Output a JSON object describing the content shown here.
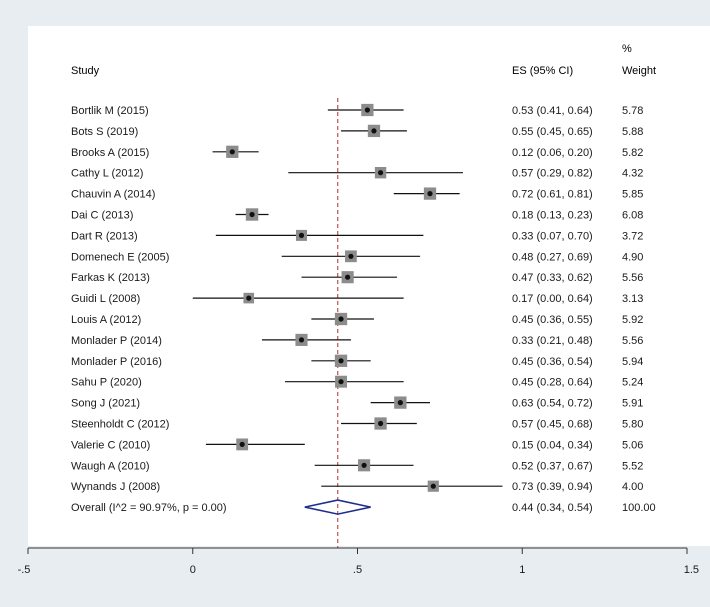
{
  "chart_data": {
    "type": "forest",
    "headers": {
      "study": "Study",
      "es": "ES (95% CI)",
      "weight_line1": "%",
      "weight_line2": "Weight"
    },
    "studies": [
      {
        "label": "Bortlik M (2015)",
        "es": 0.53,
        "lo": 0.41,
        "hi": 0.64,
        "ci_text": "0.53 (0.41, 0.64)",
        "weight": 5.78,
        "weight_text": "5.78"
      },
      {
        "label": "Bots S (2019)",
        "es": 0.55,
        "lo": 0.45,
        "hi": 0.65,
        "ci_text": "0.55 (0.45, 0.65)",
        "weight": 5.88,
        "weight_text": "5.88"
      },
      {
        "label": "Brooks A (2015)",
        "es": 0.12,
        "lo": 0.06,
        "hi": 0.2,
        "ci_text": "0.12 (0.06, 0.20)",
        "weight": 5.82,
        "weight_text": "5.82"
      },
      {
        "label": "Cathy L (2012)",
        "es": 0.57,
        "lo": 0.29,
        "hi": 0.82,
        "ci_text": "0.57 (0.29, 0.82)",
        "weight": 4.32,
        "weight_text": "4.32"
      },
      {
        "label": "Chauvin A (2014)",
        "es": 0.72,
        "lo": 0.61,
        "hi": 0.81,
        "ci_text": "0.72 (0.61, 0.81)",
        "weight": 5.85,
        "weight_text": "5.85"
      },
      {
        "label": "Dai C (2013)",
        "es": 0.18,
        "lo": 0.13,
        "hi": 0.23,
        "ci_text": "0.18 (0.13, 0.23)",
        "weight": 6.08,
        "weight_text": "6.08"
      },
      {
        "label": "Dart R (2013)",
        "es": 0.33,
        "lo": 0.07,
        "hi": 0.7,
        "ci_text": "0.33 (0.07, 0.70)",
        "weight": 3.72,
        "weight_text": "3.72"
      },
      {
        "label": "Domenech E (2005)",
        "es": 0.48,
        "lo": 0.27,
        "hi": 0.69,
        "ci_text": "0.48 (0.27, 0.69)",
        "weight": 4.9,
        "weight_text": "4.90"
      },
      {
        "label": "Farkas K (2013)",
        "es": 0.47,
        "lo": 0.33,
        "hi": 0.62,
        "ci_text": "0.47 (0.33, 0.62)",
        "weight": 5.56,
        "weight_text": "5.56"
      },
      {
        "label": "Guidi L (2008)",
        "es": 0.17,
        "lo": 0.0,
        "hi": 0.64,
        "ci_text": "0.17 (0.00, 0.64)",
        "weight": 3.13,
        "weight_text": "3.13"
      },
      {
        "label": "Louis A (2012)",
        "es": 0.45,
        "lo": 0.36,
        "hi": 0.55,
        "ci_text": "0.45 (0.36, 0.55)",
        "weight": 5.92,
        "weight_text": "5.92"
      },
      {
        "label": "Monlader P (2014)",
        "es": 0.33,
        "lo": 0.21,
        "hi": 0.48,
        "ci_text": "0.33 (0.21, 0.48)",
        "weight": 5.56,
        "weight_text": "5.56"
      },
      {
        "label": "Monlader P (2016)",
        "es": 0.45,
        "lo": 0.36,
        "hi": 0.54,
        "ci_text": "0.45 (0.36, 0.54)",
        "weight": 5.94,
        "weight_text": "5.94"
      },
      {
        "label": "Sahu P (2020)",
        "es": 0.45,
        "lo": 0.28,
        "hi": 0.64,
        "ci_text": "0.45 (0.28, 0.64)",
        "weight": 5.24,
        "weight_text": "5.24"
      },
      {
        "label": "Song J (2021)",
        "es": 0.63,
        "lo": 0.54,
        "hi": 0.72,
        "ci_text": "0.63 (0.54, 0.72)",
        "weight": 5.91,
        "weight_text": "5.91"
      },
      {
        "label": "Steenholdt C (2012)",
        "es": 0.57,
        "lo": 0.45,
        "hi": 0.68,
        "ci_text": "0.57 (0.45, 0.68)",
        "weight": 5.8,
        "weight_text": "5.80"
      },
      {
        "label": "Valerie C (2010)",
        "es": 0.15,
        "lo": 0.04,
        "hi": 0.34,
        "ci_text": "0.15 (0.04, 0.34)",
        "weight": 5.06,
        "weight_text": "5.06"
      },
      {
        "label": "Waugh A (2010)",
        "es": 0.52,
        "lo": 0.37,
        "hi": 0.67,
        "ci_text": "0.52 (0.37, 0.67)",
        "weight": 5.52,
        "weight_text": "5.52"
      },
      {
        "label": "Wynands J (2008)",
        "es": 0.73,
        "lo": 0.39,
        "hi": 0.94,
        "ci_text": "0.73 (0.39, 0.94)",
        "weight": 4.0,
        "weight_text": "4.00"
      }
    ],
    "overall": {
      "label": "Overall  (I^2 = 90.97%, p = 0.00)",
      "es": 0.44,
      "lo": 0.34,
      "hi": 0.54,
      "ci_text": "0.44 (0.34, 0.54)",
      "weight": 100.0,
      "weight_text": "100.00"
    },
    "x_axis": {
      "range": [
        -0.5,
        1.5
      ],
      "ticks": [
        -0.5,
        0,
        0.5,
        1,
        1.5
      ],
      "tick_labels": [
        "-.5",
        "0",
        ".5",
        "1",
        "1.5"
      ]
    },
    "reference_line": 0.44
  },
  "colors": {
    "background": "#e8edf1",
    "panel": "#ffffff",
    "text": "#1a1a1a",
    "ci_line": "#111111",
    "box": "#8c8c8c",
    "point": "#111111",
    "diamond": "#1f2e8c",
    "reference_line": "#c0504d",
    "axis": "#333333"
  }
}
